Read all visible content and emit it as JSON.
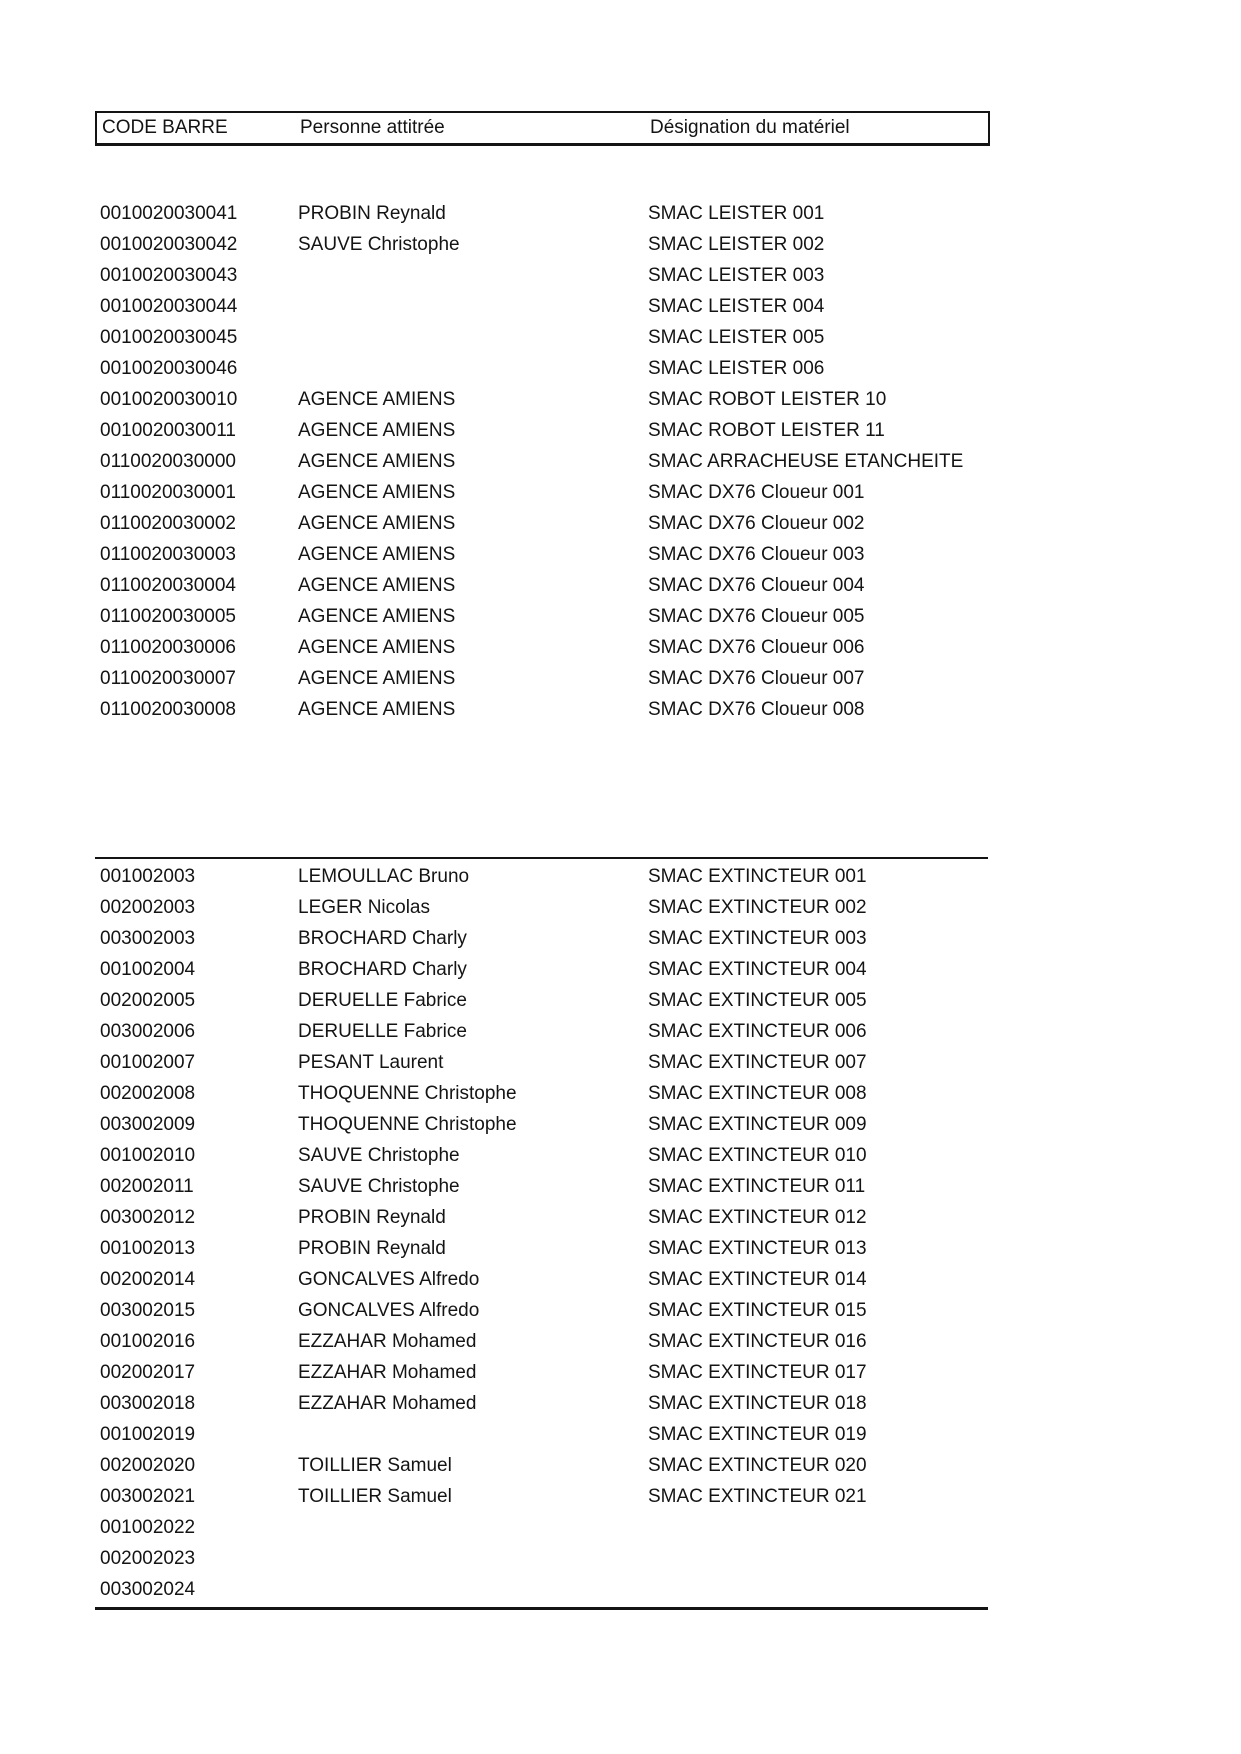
{
  "table": {
    "columns": [
      {
        "key": "code",
        "label": "CODE BARRE"
      },
      {
        "key": "person",
        "label": "Personne attitrée"
      },
      {
        "key": "designation",
        "label": "Désignation du matériel"
      }
    ],
    "sections": [
      {
        "rows": [
          [
            "0010020030041",
            "PROBIN Reynald",
            "SMAC LEISTER 001"
          ],
          [
            "0010020030042",
            "SAUVE Christophe",
            "SMAC LEISTER 002"
          ],
          [
            "0010020030043",
            "",
            "SMAC LEISTER 003"
          ],
          [
            "0010020030044",
            "",
            "SMAC LEISTER 004"
          ],
          [
            "0010020030045",
            "",
            "SMAC LEISTER 005"
          ],
          [
            "0010020030046",
            "",
            "SMAC LEISTER 006"
          ],
          [
            "0010020030010",
            "AGENCE AMIENS",
            "SMAC ROBOT LEISTER 10"
          ],
          [
            "0010020030011",
            "AGENCE AMIENS",
            "SMAC ROBOT LEISTER 11"
          ],
          [
            "0110020030000",
            "AGENCE AMIENS",
            "SMAC ARRACHEUSE ETANCHEITE"
          ],
          [
            "0110020030001",
            "AGENCE AMIENS",
            "SMAC DX76 Cloueur 001"
          ],
          [
            "0110020030002",
            "AGENCE AMIENS",
            "SMAC DX76 Cloueur 002"
          ],
          [
            "0110020030003",
            "AGENCE AMIENS",
            "SMAC DX76 Cloueur 003"
          ],
          [
            "0110020030004",
            "AGENCE AMIENS",
            "SMAC DX76 Cloueur 004"
          ],
          [
            "0110020030005",
            "AGENCE AMIENS",
            "SMAC DX76 Cloueur 005"
          ],
          [
            "0110020030006",
            "AGENCE AMIENS",
            "SMAC DX76 Cloueur 006"
          ],
          [
            "0110020030007",
            "AGENCE AMIENS",
            "SMAC DX76 Cloueur 007"
          ],
          [
            "0110020030008",
            "AGENCE AMIENS",
            "SMAC DX76 Cloueur 008"
          ]
        ]
      },
      {
        "rows": [
          [
            "001002003",
            "LEMOULLAC Bruno",
            "SMAC EXTINCTEUR 001"
          ],
          [
            "002002003",
            "LEGER Nicolas",
            "SMAC EXTINCTEUR 002"
          ],
          [
            "003002003",
            "BROCHARD Charly",
            "SMAC EXTINCTEUR 003"
          ],
          [
            "001002004",
            "BROCHARD Charly",
            "SMAC EXTINCTEUR 004"
          ],
          [
            "002002005",
            "DERUELLE Fabrice",
            "SMAC EXTINCTEUR 005"
          ],
          [
            "003002006",
            "DERUELLE Fabrice",
            "SMAC EXTINCTEUR 006"
          ],
          [
            "001002007",
            "PESANT Laurent",
            "SMAC EXTINCTEUR 007"
          ],
          [
            "002002008",
            "THOQUENNE Christophe",
            "SMAC EXTINCTEUR 008"
          ],
          [
            "003002009",
            "THOQUENNE Christophe",
            "SMAC EXTINCTEUR 009"
          ],
          [
            "001002010",
            "SAUVE Christophe",
            "SMAC EXTINCTEUR 010"
          ],
          [
            "002002011",
            "SAUVE Christophe",
            "SMAC EXTINCTEUR 011"
          ],
          [
            "003002012",
            "PROBIN Reynald",
            "SMAC EXTINCTEUR 012"
          ],
          [
            "001002013",
            "PROBIN Reynald",
            "SMAC EXTINCTEUR 013"
          ],
          [
            "002002014",
            "GONCALVES Alfredo",
            "SMAC EXTINCTEUR 014"
          ],
          [
            "003002015",
            "GONCALVES Alfredo",
            "SMAC EXTINCTEUR 015"
          ],
          [
            "001002016",
            "EZZAHAR Mohamed",
            "SMAC EXTINCTEUR 016"
          ],
          [
            "002002017",
            "EZZAHAR Mohamed",
            "SMAC EXTINCTEUR 017"
          ],
          [
            "003002018",
            "EZZAHAR Mohamed",
            "SMAC EXTINCTEUR 018"
          ],
          [
            "001002019",
            "",
            "SMAC EXTINCTEUR 019"
          ],
          [
            "002002020",
            "TOILLIER Samuel",
            "SMAC EXTINCTEUR 020"
          ],
          [
            "003002021",
            "TOILLIER Samuel",
            "SMAC EXTINCTEUR 021"
          ],
          [
            "001002022",
            "",
            ""
          ],
          [
            "002002023",
            "",
            ""
          ],
          [
            "003002024",
            "",
            ""
          ]
        ]
      }
    ]
  },
  "colors": {
    "text": "#141414",
    "border": "#141414",
    "background": "#ffffff"
  }
}
